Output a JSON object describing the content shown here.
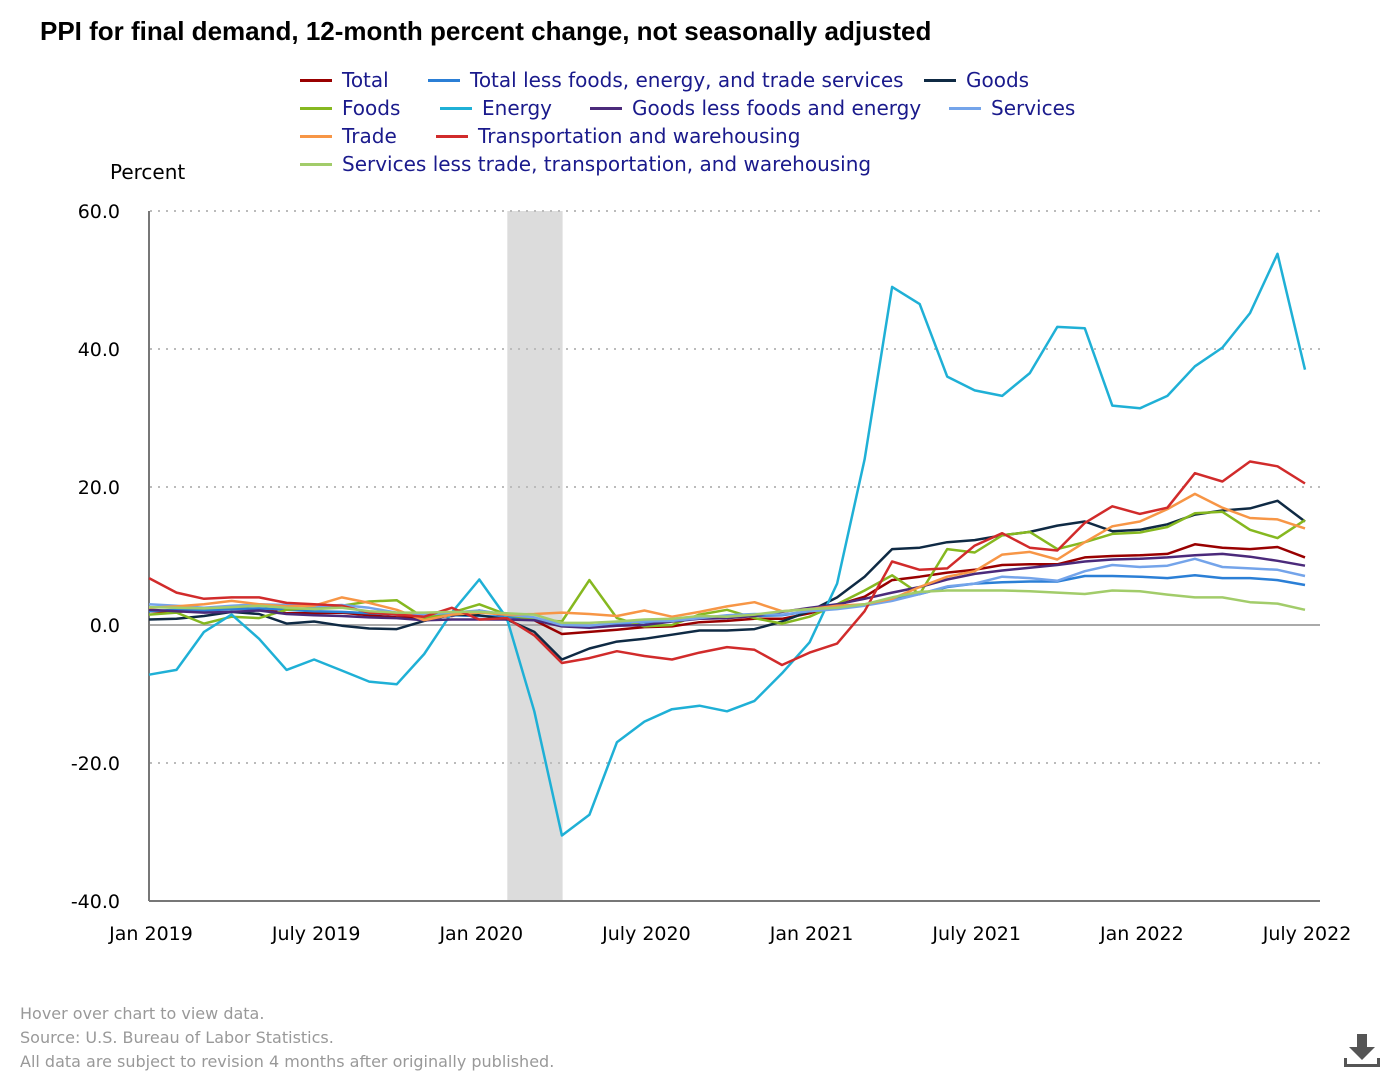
{
  "chart_data": {
    "type": "line",
    "title": "PPI for final demand, 12-month percent change, not seasonally adjusted",
    "ylabel": "Percent",
    "xlabel": "",
    "ylim": [
      -40,
      60
    ],
    "yticks": [
      "60.0",
      "40.0",
      "20.0",
      "0.0",
      "-20.0",
      "-40.0"
    ],
    "ytick_values": [
      60,
      40,
      20,
      0,
      -20,
      -40
    ],
    "x_start": "Jan 2019",
    "x_end": "July 2022",
    "xticks": [
      {
        "label": "Jan 2019",
        "index": 0
      },
      {
        "label": "July 2019",
        "index": 6
      },
      {
        "label": "Jan 2020",
        "index": 12
      },
      {
        "label": "July 2020",
        "index": 18
      },
      {
        "label": "Jan 2021",
        "index": 24
      },
      {
        "label": "July 2021",
        "index": 30
      },
      {
        "label": "Jan 2022",
        "index": 36
      },
      {
        "label": "July 2022",
        "index": 42
      }
    ],
    "recession_shading": {
      "start_index": 13,
      "end_index": 15
    },
    "grid": "horizontal dotted",
    "legend_placement": "top",
    "series": [
      {
        "name": "Total",
        "color": "#990000",
        "values": [
          2.0,
          1.9,
          2.2,
          2.4,
          2.3,
          1.7,
          1.7,
          1.8,
          1.4,
          1.1,
          1.1,
          1.3,
          2.1,
          1.3,
          0.7,
          -1.3,
          -1.0,
          -0.7,
          -0.3,
          -0.2,
          0.4,
          0.6,
          0.9,
          0.9,
          1.7,
          2.9,
          4.1,
          6.5,
          7.0,
          7.6,
          8.0,
          8.7,
          8.8,
          8.8,
          9.8,
          10.0,
          10.1,
          10.3,
          11.7,
          11.2,
          11.0,
          11.3,
          9.8
        ]
      },
      {
        "name": "Total less foods, energy, and trade services",
        "color": "#2b7fd6",
        "values": [
          2.0,
          2.2,
          2.1,
          2.3,
          2.4,
          2.2,
          2.0,
          1.9,
          1.7,
          1.5,
          1.3,
          1.4,
          1.3,
          1.2,
          0.9,
          -0.1,
          -0.2,
          0.2,
          0.4,
          0.6,
          1.0,
          1.1,
          1.3,
          1.4,
          2.0,
          2.5,
          2.9,
          3.8,
          4.5,
          5.5,
          6.0,
          6.2,
          6.3,
          6.3,
          7.1,
          7.1,
          7.0,
          6.8,
          7.2,
          6.8,
          6.8,
          6.5,
          5.8
        ]
      },
      {
        "name": "Goods",
        "color": "#0f2a44",
        "values": [
          0.8,
          0.9,
          1.3,
          1.9,
          1.6,
          0.2,
          0.5,
          -0.1,
          -0.5,
          -0.6,
          0.6,
          1.5,
          1.4,
          0.8,
          -1.0,
          -5.0,
          -3.4,
          -2.4,
          -2.0,
          -1.4,
          -0.8,
          -0.8,
          -0.6,
          0.5,
          2.0,
          4.0,
          7.0,
          11.0,
          11.2,
          12.0,
          12.3,
          13.0,
          13.5,
          14.4,
          15.0,
          13.6,
          13.8,
          14.6,
          16.0,
          16.6,
          16.9,
          18.0,
          15.0
        ]
      },
      {
        "name": "Foods",
        "color": "#86b820",
        "values": [
          1.5,
          1.8,
          0.2,
          1.2,
          1.0,
          2.2,
          2.5,
          2.8,
          3.4,
          3.6,
          1.0,
          1.8,
          3.0,
          1.5,
          0.8,
          0.5,
          6.5,
          1.0,
          -0.2,
          0.0,
          1.5,
          2.2,
          1.0,
          0.2,
          1.2,
          3.0,
          5.0,
          7.2,
          4.5,
          11.0,
          10.5,
          13.0,
          13.5,
          11.0,
          12.0,
          13.2,
          13.4,
          14.2,
          16.2,
          16.4,
          13.8,
          12.6,
          15.2
        ]
      },
      {
        "name": "Energy",
        "color": "#1fb0d6",
        "values": [
          -7.2,
          -6.5,
          -1.0,
          1.5,
          -2.0,
          -6.5,
          -5.0,
          -6.6,
          -8.2,
          -8.6,
          -4.2,
          1.8,
          6.6,
          1.0,
          -12.5,
          -30.5,
          -27.5,
          -17.0,
          -14.0,
          -12.2,
          -11.7,
          -12.5,
          -11.0,
          -7.0,
          -2.5,
          6.0,
          24.0,
          49.0,
          46.5,
          36.0,
          34.0,
          33.2,
          36.5,
          43.2,
          43.0,
          31.8,
          31.4,
          33.2,
          37.5,
          40.2,
          45.2,
          53.8,
          37.0
        ]
      },
      {
        "name": "Goods less foods and energy",
        "color": "#4b2a7b",
        "values": [
          2.2,
          2.0,
          1.8,
          1.9,
          2.1,
          1.6,
          1.4,
          1.3,
          1.1,
          1.0,
          0.7,
          0.8,
          0.8,
          0.8,
          0.7,
          -0.2,
          -0.4,
          -0.1,
          0.0,
          0.5,
          0.9,
          1.0,
          1.3,
          1.9,
          2.5,
          3.0,
          3.8,
          4.7,
          5.5,
          6.6,
          7.4,
          7.9,
          8.3,
          8.7,
          9.2,
          9.5,
          9.6,
          9.8,
          10.1,
          10.3,
          9.9,
          9.3,
          8.6
        ]
      },
      {
        "name": "Services",
        "color": "#74a4ea",
        "values": [
          3.0,
          2.8,
          2.5,
          2.8,
          3.0,
          2.9,
          2.7,
          2.9,
          2.5,
          1.8,
          1.5,
          1.8,
          2.1,
          1.5,
          1.1,
          0.0,
          -0.1,
          0.3,
          0.5,
          0.6,
          1.0,
          1.4,
          1.6,
          1.5,
          2.0,
          2.3,
          2.8,
          3.5,
          4.5,
          5.6,
          6.0,
          7.0,
          6.8,
          6.4,
          7.8,
          8.7,
          8.4,
          8.6,
          9.6,
          8.4,
          8.2,
          8.0,
          7.1
        ]
      },
      {
        "name": "Trade",
        "color": "#f79646",
        "values": [
          2.5,
          2.7,
          3.0,
          3.5,
          3.0,
          2.7,
          2.8,
          4.0,
          3.2,
          2.2,
          0.7,
          1.5,
          1.8,
          1.5,
          1.6,
          1.8,
          1.6,
          1.3,
          2.1,
          1.2,
          1.9,
          2.7,
          3.3,
          2.0,
          2.3,
          2.8,
          3.0,
          3.8,
          5.5,
          7.0,
          7.8,
          10.2,
          10.6,
          9.5,
          12.0,
          14.3,
          15.0,
          16.8,
          19.0,
          17.0,
          15.5,
          15.3,
          14.0
        ]
      },
      {
        "name": "Transportation and warehousing",
        "color": "#d12b2b",
        "values": [
          6.8,
          4.7,
          3.8,
          4.0,
          4.0,
          3.2,
          3.0,
          2.8,
          1.8,
          1.5,
          1.2,
          2.5,
          0.8,
          1.0,
          -1.5,
          -5.5,
          -4.8,
          -3.8,
          -4.5,
          -5.0,
          -4.0,
          -3.2,
          -3.6,
          -5.8,
          -4.0,
          -2.7,
          2.0,
          9.2,
          8.0,
          8.2,
          11.5,
          13.3,
          11.2,
          10.8,
          14.8,
          17.2,
          16.1,
          17.0,
          22.0,
          20.8,
          23.7,
          23.0,
          20.5
        ]
      },
      {
        "name": "Services less trade, transportation, and warehousing",
        "color": "#a2cc6a",
        "values": [
          2.6,
          2.5,
          2.4,
          2.6,
          2.8,
          2.5,
          2.3,
          2.5,
          2.0,
          1.8,
          1.8,
          1.9,
          1.9,
          1.7,
          1.5,
          0.3,
          0.3,
          0.5,
          0.8,
          0.9,
          1.3,
          1.2,
          1.5,
          2.0,
          2.3,
          2.5,
          3.0,
          4.0,
          4.8,
          5.0,
          5.0,
          5.0,
          4.9,
          4.7,
          4.5,
          5.0,
          4.9,
          4.4,
          4.0,
          4.0,
          3.3,
          3.1,
          2.2
        ]
      }
    ]
  },
  "footer": {
    "hover": "Hover over chart to view data.",
    "source": "Source: U.S. Bureau of Labor Statistics.",
    "note": "All data are subject to revision 4 months after originally published."
  }
}
